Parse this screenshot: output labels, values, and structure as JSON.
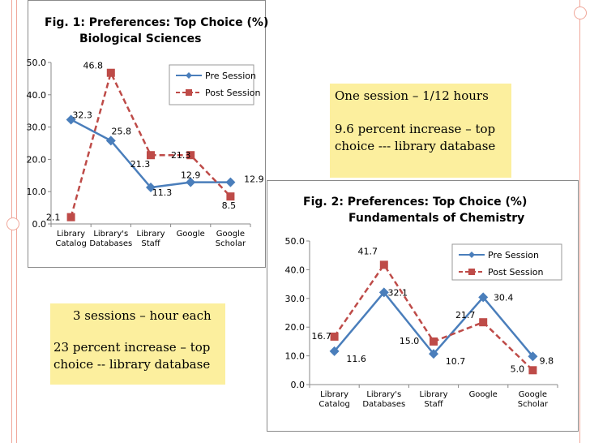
{
  "slide": {
    "note1": {
      "line1": "One session – 1/12 hours",
      "line2": "9.6 percent increase – top choice --- library database"
    },
    "note2": {
      "line1": "3 sessions – hour each",
      "line2": "23 percent increase – top choice -- library database"
    },
    "colors": {
      "pre": "#4a7ebb",
      "post": "#be4b48",
      "note": "#fcef9e",
      "frame": "#f0a79a"
    }
  },
  "chart_data": [
    {
      "type": "line",
      "title": "Fig. 1: Preferences: Top Choice (%)",
      "subtitle": "Biological Sciences",
      "categories": [
        "Library Catalog",
        "Library's Databases",
        "Library Staff",
        "Google",
        "Google Scholar"
      ],
      "series": [
        {
          "name": "Pre Session",
          "values": [
            32.3,
            25.8,
            11.3,
            12.9,
            12.9
          ]
        },
        {
          "name": "Post Session",
          "values": [
            2.1,
            46.8,
            21.3,
            21.3,
            8.5
          ]
        }
      ],
      "yticks": [
        "0.0",
        "10.0",
        "20.0",
        "30.0",
        "40.0",
        "50.0"
      ],
      "ylim": [
        0,
        50
      ],
      "legend": "top-right"
    },
    {
      "type": "line",
      "title": "Fig. 2: Preferences: Top Choice (%)",
      "subtitle": "Fundamentals of Chemistry",
      "categories": [
        "Library Catalog",
        "Library's Databases",
        "Library Staff",
        "Google",
        "Google Scholar"
      ],
      "series": [
        {
          "name": "Pre Session",
          "values": [
            11.6,
            32.1,
            10.7,
            30.4,
            9.8
          ]
        },
        {
          "name": "Post Session",
          "values": [
            16.7,
            41.7,
            15.0,
            21.7,
            5.0
          ]
        }
      ],
      "yticks": [
        "0.0",
        "10.0",
        "20.0",
        "30.0",
        "40.0",
        "50.0"
      ],
      "ylim": [
        0,
        50
      ],
      "legend": "top-right"
    }
  ]
}
